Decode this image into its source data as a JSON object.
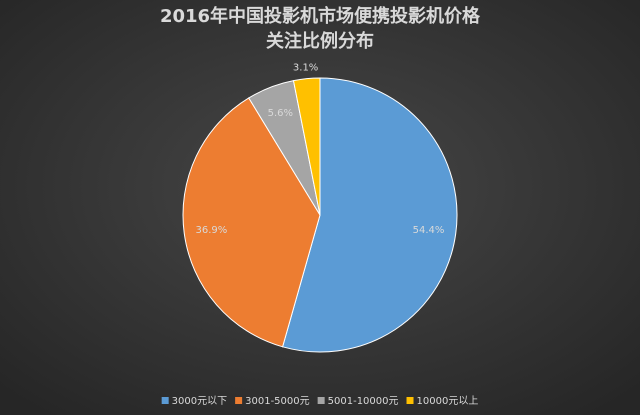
{
  "chart_data": {
    "type": "pie",
    "title": [
      "2016年中国投影机市场便携投影机价格",
      "关注比例分布"
    ],
    "categories": [
      "3000元以下",
      "3001-5000元",
      "5001-10000元",
      "10000元以上"
    ],
    "values": [
      54.4,
      36.9,
      5.6,
      3.1
    ],
    "value_labels": [
      "54.4%",
      "36.9%",
      "5.6%",
      "3.1%"
    ],
    "colors": [
      "#5b9bd5",
      "#ed7d31",
      "#a5a5a5",
      "#ffc000"
    ],
    "legend": "bottom"
  }
}
